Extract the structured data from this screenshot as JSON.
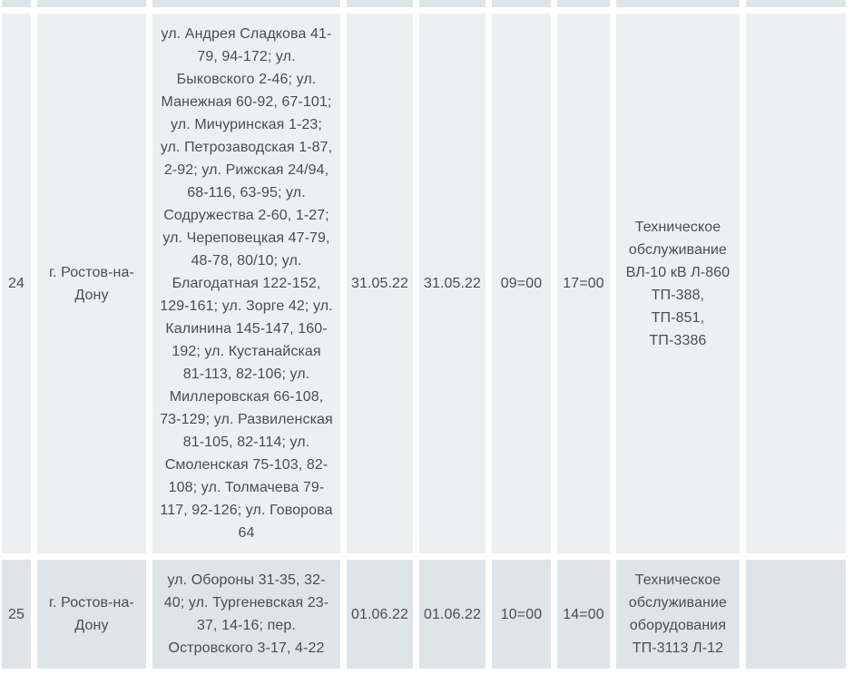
{
  "page": {
    "background": "#ffffff"
  },
  "table": {
    "description": "planned-power-outage-schedule-table",
    "row_colors": {
      "even": "#ecf0f1",
      "odd": "#dee5e8"
    },
    "text_color": "#4a4e52",
    "rows": [
      {
        "number": "",
        "city": "",
        "streets": "",
        "date_start": "",
        "date_end": "",
        "time_start": "",
        "time_end": "",
        "work": "",
        "note": ""
      },
      {
        "number": "24",
        "city": "г. Ростов-на-Дону",
        "streets": "ул. Андрея Сладкова 41-79, 94-172; ул. Быковского 2-46; ул. Манежная 60-92, 67-101; ул. Мичуринская 1-23; ул. Петрозаводская 1-87, 2-92; ул. Рижская 24/94, 68-116, 63-95; ул. Содружества 2-60, 1-27; ул. Череповецкая 47-79, 48-78, 80/10; ул. Благодатная 122-152, 129-161; ул. Зорге 42; ул. Калинина 145-147, 160-192; ул. Кустанайская 81-113, 82-106; ул. Миллеровская 66-108, 73-129; ул. Развиленская 81-105, 82-114; ул. Смоленская 75-103, 82-108; ул. Толмачева 79-117, 92-126; ул. Говорова 64",
        "date_start": "31.05.22",
        "date_end": "31.05.22",
        "time_start": "09=00",
        "time_end": "17=00",
        "work": "Техническое обслуживание ВЛ-10 кВ Л-860\nТП-388,\nТП-851,\nТП-3386",
        "note": ""
      },
      {
        "number": "25",
        "city": "г. Ростов-на-Дону",
        "streets": "ул. Обороны 31-35, 32-40; ул. Тургеневская 23-37, 14-16; пер. Островского 3-17, 4-22",
        "date_start": "01.06.22",
        "date_end": "01.06.22",
        "time_start": "10=00",
        "time_end": "14=00",
        "work": "Техническое обслуживание оборудования ТП-3113 Л-12",
        "note": ""
      }
    ]
  }
}
